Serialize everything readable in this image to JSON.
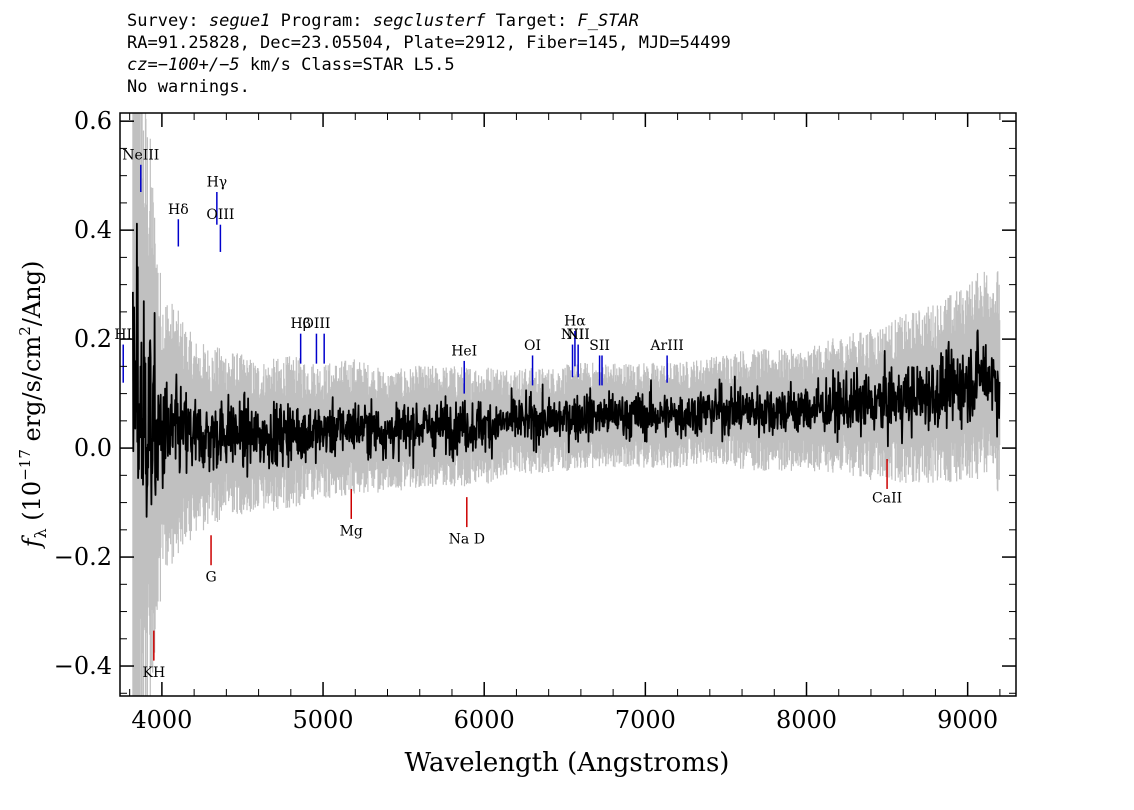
{
  "header": {
    "survey_label": "Survey:",
    "survey": "segue1",
    "program_label": "Program:",
    "program": "segclusterf",
    "target_label": "Target:",
    "target": "F_STAR",
    "line2": "RA=91.25828, Dec=23.05504, Plate=2912, Fiber=145, MJD=54499",
    "cz_label": "cz=",
    "cz": "−100+/−5",
    "cz_units": "km/s",
    "class_text": "Class=STAR L5.5",
    "warnings": "No warnings."
  },
  "colors": {
    "flux": "#000000",
    "error_band": "#c0c0c0",
    "emission_marker": "#0000cc",
    "absorption_marker": "#cc0000"
  },
  "chart_data": {
    "type": "line",
    "xlabel": "Wavelength (Angstroms)",
    "ylabel": "f_λ (10^-17 erg/s/cm²/Ang)",
    "xlim": [
      3740,
      9300
    ],
    "ylim": [
      -0.455,
      0.615
    ],
    "xticks": [
      4000,
      5000,
      6000,
      7000,
      8000,
      9000
    ],
    "yticks": [
      -0.4,
      -0.2,
      0.0,
      0.2,
      0.4,
      0.6
    ],
    "xtick_labels": [
      "4000",
      "5000",
      "6000",
      "7000",
      "8000",
      "9000"
    ],
    "ytick_labels": [
      "−0.4",
      "−0.2",
      "0.0",
      "0.2",
      "0.4",
      "0.6"
    ],
    "grid": false,
    "series": [
      {
        "kind": "error_band",
        "x": [
          3820,
          3850,
          3880,
          3920,
          3960,
          4000,
          4100,
          4200,
          4300,
          4400,
          4600,
          4800,
          5000,
          5200,
          5400,
          5600,
          5800,
          6000,
          6200,
          6400,
          6600,
          6800,
          7000,
          7200,
          7400,
          7600,
          7800,
          8000,
          8200,
          8400,
          8600,
          8800,
          9000,
          9100,
          9200
        ],
        "values": [
          0.03,
          0.1,
          0.06,
          0.05,
          0.02,
          0.02,
          0.03,
          0.02,
          0.02,
          0.03,
          0.02,
          0.03,
          0.03,
          0.04,
          0.03,
          0.04,
          0.04,
          0.04,
          0.05,
          0.05,
          0.06,
          0.06,
          0.06,
          0.06,
          0.07,
          0.07,
          0.07,
          0.07,
          0.08,
          0.08,
          0.09,
          0.1,
          0.12,
          0.14,
          0.12
        ],
        "spread": [
          0.55,
          0.55,
          0.45,
          0.4,
          0.3,
          0.2,
          0.16,
          0.13,
          0.12,
          0.11,
          0.1,
          0.1,
          0.09,
          0.09,
          0.08,
          0.08,
          0.08,
          0.08,
          0.07,
          0.07,
          0.07,
          0.07,
          0.07,
          0.07,
          0.07,
          0.08,
          0.08,
          0.08,
          0.09,
          0.1,
          0.11,
          0.12,
          0.13,
          0.14,
          0.15
        ]
      },
      {
        "kind": "flux",
        "x": [
          3820,
          3850,
          3880,
          3920,
          3960,
          4000,
          4100,
          4200,
          4300,
          4400,
          4600,
          4800,
          5000,
          5200,
          5400,
          5600,
          5800,
          6000,
          6200,
          6400,
          6600,
          6800,
          7000,
          7200,
          7400,
          7600,
          7800,
          8000,
          8200,
          8400,
          8600,
          8800,
          9000,
          9100,
          9200
        ],
        "values": [
          0.03,
          0.1,
          0.06,
          0.05,
          0.02,
          0.02,
          0.03,
          0.02,
          0.02,
          0.03,
          0.02,
          0.03,
          0.03,
          0.04,
          0.03,
          0.04,
          0.04,
          0.04,
          0.05,
          0.05,
          0.06,
          0.06,
          0.06,
          0.06,
          0.07,
          0.07,
          0.07,
          0.07,
          0.08,
          0.08,
          0.09,
          0.1,
          0.12,
          0.14,
          0.12
        ],
        "noise": [
          0.28,
          0.3,
          0.25,
          0.22,
          0.18,
          0.12,
          0.09,
          0.08,
          0.07,
          0.07,
          0.06,
          0.06,
          0.05,
          0.05,
          0.05,
          0.05,
          0.05,
          0.05,
          0.045,
          0.045,
          0.045,
          0.045,
          0.045,
          0.045,
          0.045,
          0.05,
          0.05,
          0.05,
          0.055,
          0.06,
          0.065,
          0.07,
          0.075,
          0.08,
          0.09
        ]
      }
    ],
    "line_markers": [
      {
        "label": "HI",
        "x": 3760,
        "kind": "emission",
        "y_top": 0.19,
        "y_bottom": 0.12,
        "label_y": 0.2
      },
      {
        "label": "NeIII",
        "x": 3869,
        "kind": "emission",
        "y_top": 0.52,
        "y_bottom": 0.47,
        "label_y": 0.53
      },
      {
        "label": "Hδ",
        "x": 4102,
        "kind": "emission",
        "y_top": 0.42,
        "y_bottom": 0.37,
        "label_y": 0.43
      },
      {
        "label": "Hγ",
        "x": 4341,
        "kind": "emission",
        "y_top": 0.47,
        "y_bottom": 0.41,
        "label_y": 0.48
      },
      {
        "label": "OIII",
        "x": 4363,
        "kind": "emission",
        "y_top": 0.41,
        "y_bottom": 0.36,
        "label_y": 0.42
      },
      {
        "label": "Hβ",
        "x": 4861,
        "kind": "emission",
        "y_top": 0.21,
        "y_bottom": 0.155,
        "label_y": 0.22
      },
      {
        "label": "OIII",
        "x": 4959,
        "kind": "emission",
        "y_top": 0.21,
        "y_bottom": 0.155,
        "label_y": 0.22
      },
      {
        "label": "",
        "x": 5007,
        "kind": "emission",
        "y_top": 0.21,
        "y_bottom": 0.155,
        "label_y": 0.22
      },
      {
        "label": "HeI",
        "x": 5876,
        "kind": "emission",
        "y_top": 0.16,
        "y_bottom": 0.1,
        "label_y": 0.17
      },
      {
        "label": "OI",
        "x": 6300,
        "kind": "emission",
        "y_top": 0.17,
        "y_bottom": 0.115,
        "label_y": 0.18
      },
      {
        "label": "NII",
        "x": 6548,
        "kind": "emission",
        "y_top": 0.19,
        "y_bottom": 0.13,
        "label_y": 0.2
      },
      {
        "label": "Hα",
        "x": 6563,
        "kind": "emission",
        "y_top": 0.215,
        "y_bottom": 0.15,
        "label_y": 0.225
      },
      {
        "label": "NII",
        "x": 6583,
        "kind": "emission",
        "y_top": 0.19,
        "y_bottom": 0.13,
        "label_y": 0.2
      },
      {
        "label": "SII",
        "x": 6716,
        "kind": "emission",
        "y_top": 0.17,
        "y_bottom": 0.115,
        "label_y": 0.18
      },
      {
        "label": "",
        "x": 6731,
        "kind": "emission",
        "y_top": 0.17,
        "y_bottom": 0.115,
        "label_y": 0.18
      },
      {
        "label": "ArIII",
        "x": 7135,
        "kind": "emission",
        "y_top": 0.17,
        "y_bottom": 0.12,
        "label_y": 0.18
      },
      {
        "label": "KH",
        "x": 3950,
        "kind": "absorption",
        "y_top": -0.335,
        "y_bottom": -0.39,
        "label_y": -0.42
      },
      {
        "label": "G",
        "x": 4305,
        "kind": "absorption",
        "y_top": -0.16,
        "y_bottom": -0.215,
        "label_y": -0.245
      },
      {
        "label": "Mg",
        "x": 5175,
        "kind": "absorption",
        "y_top": -0.075,
        "y_bottom": -0.13,
        "label_y": -0.16
      },
      {
        "label": "Na D",
        "x": 5892,
        "kind": "absorption",
        "y_top": -0.09,
        "y_bottom": -0.145,
        "label_y": -0.175
      },
      {
        "label": "CaII",
        "x": 8500,
        "kind": "absorption",
        "y_top": -0.02,
        "y_bottom": -0.075,
        "label_y": -0.1
      }
    ]
  }
}
